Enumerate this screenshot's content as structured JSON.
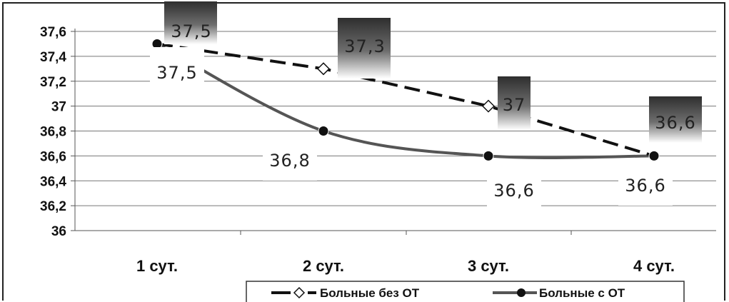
{
  "chart_data": {
    "type": "line",
    "categories": [
      "1 сут.",
      "2 сут.",
      "3 сут.",
      "4 сут."
    ],
    "ylim": [
      36,
      37.6
    ],
    "yticks": [
      36,
      36.2,
      36.4,
      36.6,
      36.8,
      37,
      37.2,
      37.4,
      37.6
    ],
    "ytick_labels": [
      "36",
      "36,2",
      "36,4",
      "36,6",
      "36,8",
      "37",
      "37,2",
      "37,4",
      "37,6"
    ],
    "grid": true,
    "legend_position": "bottom",
    "series": [
      {
        "name": "Больные без ОТ",
        "values": [
          37.5,
          37.3,
          37,
          36.6
        ],
        "labels": [
          "37,5",
          "37,3",
          "37",
          "36,6"
        ],
        "style": "dashed",
        "marker": "open-diamond",
        "color": "#111111"
      },
      {
        "name": "Больные с ОТ",
        "values": [
          37.5,
          36.8,
          36.6,
          36.6
        ],
        "labels": [
          "37,5",
          "36,8",
          "36,6",
          "36,6"
        ],
        "style": "solid-smooth",
        "marker": "filled-circle",
        "color": "#555555"
      }
    ]
  }
}
